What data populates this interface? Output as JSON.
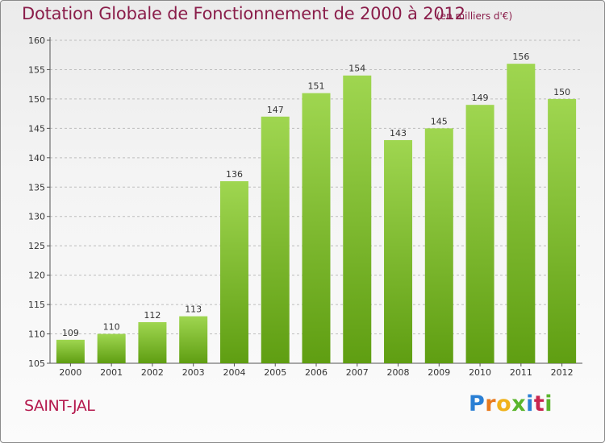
{
  "title": "Dotation Globale de Fonctionnement de 2000 à 2012",
  "subtitle": "(en milliers d'€)",
  "commune": "SAINT-JAL",
  "logo": {
    "text": "Proxiti",
    "letters": [
      "P",
      "r",
      "o",
      "x",
      "i",
      "t",
      "i"
    ],
    "letter_colors": [
      "#2a7fd4",
      "#e87a1e",
      "#f0b21a",
      "#5ab52c",
      "#2a7fd4",
      "#c8254f",
      "#5ab52c"
    ]
  },
  "colors": {
    "bar_top": "#9fd650",
    "bar_bottom": "#5f9e12",
    "title": "#8a1d4a",
    "commune": "#b4194d"
  },
  "chart_data": {
    "type": "bar",
    "title": "Dotation Globale de Fonctionnement de 2000 à 2012",
    "subtitle": "(en milliers d'€)",
    "categories": [
      "2000",
      "2001",
      "2002",
      "2003",
      "2004",
      "2005",
      "2006",
      "2007",
      "2008",
      "2009",
      "2010",
      "2011",
      "2012"
    ],
    "values": [
      109,
      110,
      112,
      113,
      136,
      147,
      151,
      154,
      143,
      145,
      149,
      156,
      150
    ],
    "ylim": [
      105,
      160
    ],
    "yticks": [
      105,
      110,
      115,
      120,
      125,
      130,
      135,
      140,
      145,
      150,
      155,
      160
    ],
    "grid": true,
    "xlabel": "",
    "ylabel": ""
  }
}
